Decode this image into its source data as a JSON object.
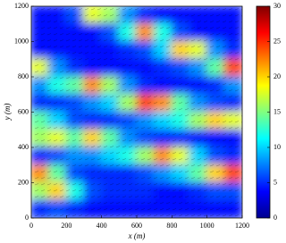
{
  "chart_data": {
    "type": "heatmap",
    "colormap": "jet",
    "xlabel": "x (m)",
    "ylabel": "y (m)",
    "x": [
      50,
      150,
      250,
      350,
      450,
      550,
      650,
      750,
      850,
      950,
      1050,
      1150
    ],
    "y": [
      1150,
      1050,
      950,
      850,
      750,
      650,
      550,
      450,
      350,
      250,
      150,
      50
    ],
    "values": [
      [
        4,
        4,
        6,
        18,
        16,
        8,
        5,
        4,
        4,
        4,
        4,
        4
      ],
      [
        4,
        4,
        4,
        4,
        6,
        12,
        22,
        12,
        6,
        4,
        4,
        4
      ],
      [
        4,
        4,
        4,
        4,
        4,
        5,
        6,
        10,
        20,
        18,
        8,
        5
      ],
      [
        18,
        8,
        5,
        4,
        4,
        4,
        4,
        5,
        6,
        8,
        14,
        24
      ],
      [
        8,
        12,
        14,
        22,
        16,
        8,
        5,
        4,
        4,
        4,
        5,
        8
      ],
      [
        5,
        5,
        6,
        8,
        10,
        16,
        24,
        22,
        14,
        8,
        6,
        5
      ],
      [
        14,
        10,
        6,
        5,
        5,
        6,
        8,
        10,
        12,
        16,
        20,
        18
      ],
      [
        16,
        18,
        14,
        20,
        14,
        8,
        6,
        5,
        5,
        4,
        4,
        4
      ],
      [
        5,
        6,
        8,
        8,
        10,
        12,
        16,
        22,
        18,
        10,
        6,
        5
      ],
      [
        22,
        14,
        6,
        5,
        5,
        5,
        6,
        8,
        10,
        14,
        20,
        24
      ],
      [
        16,
        20,
        12,
        6,
        5,
        5,
        5,
        4,
        4,
        5,
        6,
        6
      ],
      [
        5,
        6,
        5,
        4,
        4,
        4,
        4,
        4,
        4,
        4,
        4,
        4
      ]
    ],
    "xlim": [
      0,
      1200
    ],
    "xticks": [
      0,
      200,
      400,
      600,
      800,
      1000,
      1200
    ],
    "ylim": [
      0,
      1200
    ],
    "yticks": [
      0,
      200,
      400,
      600,
      800,
      1000,
      1200
    ],
    "zlim": [
      0,
      30
    ],
    "zticks": [
      0,
      5,
      10,
      15,
      20,
      25,
      30
    ]
  }
}
